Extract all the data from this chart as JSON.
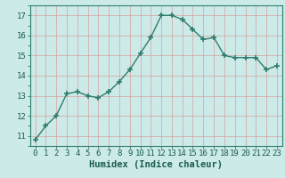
{
  "x": [
    0,
    1,
    2,
    3,
    4,
    5,
    6,
    7,
    8,
    9,
    10,
    11,
    12,
    13,
    14,
    15,
    16,
    17,
    18,
    19,
    20,
    21,
    22,
    23
  ],
  "y": [
    10.8,
    11.5,
    12.0,
    13.1,
    13.2,
    13.0,
    12.9,
    13.2,
    13.7,
    14.3,
    15.1,
    15.9,
    17.0,
    17.0,
    16.8,
    16.3,
    15.8,
    15.9,
    15.0,
    14.9,
    14.9,
    14.9,
    14.3,
    14.5
  ],
  "line_color": "#2e7d6e",
  "marker": "+",
  "markersize": 4,
  "markeredgewidth": 1.2,
  "linewidth": 1.0,
  "bg_color": "#cceae7",
  "grid_color_major": "#b8d8d4",
  "grid_color_minor": "#d4ebe8",
  "xlabel": "Humidex (Indice chaleur)",
  "xlabel_fontsize": 7.5,
  "ylim": [
    10.5,
    17.5
  ],
  "yticks": [
    11,
    12,
    13,
    14,
    15,
    16,
    17
  ],
  "xticks": [
    0,
    1,
    2,
    3,
    4,
    5,
    6,
    7,
    8,
    9,
    10,
    11,
    12,
    13,
    14,
    15,
    16,
    17,
    18,
    19,
    20,
    21,
    22,
    23
  ],
  "tick_fontsize": 6.5,
  "title_color": "#1a5c50"
}
